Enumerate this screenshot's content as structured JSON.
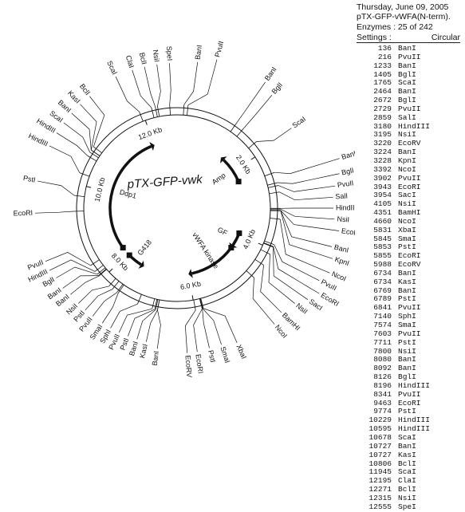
{
  "header": {
    "date": "Thursday, June 09, 2005",
    "plasmid": "pTX-GFP-vWFA(N-term).",
    "enzymes": "Enzymes : 25 of 242",
    "settings_label": "Settings :",
    "settings_value": "Circular"
  },
  "plasmid_map": {
    "handwritten_name": "pTX-GFP-vwk",
    "total_bp": 12700,
    "size_labels": [
      {
        "text": "2.0 Kb",
        "pos": 2000
      },
      {
        "text": "4.0 Kb",
        "pos": 4000
      },
      {
        "text": "6.0 Kb",
        "pos": 6000
      },
      {
        "text": "8.0 Kb",
        "pos": 8000
      },
      {
        "text": "10.0 Kb",
        "pos": 10000
      },
      {
        "text": "12.0 Kb",
        "pos": 12000
      }
    ],
    "features": [
      {
        "name": "Amp",
        "start": 1550,
        "end": 2350,
        "dir": -1
      },
      {
        "name": "GF",
        "start": 3950,
        "end": 4350,
        "dir": 1
      },
      {
        "name": "vWFA kinase",
        "start": 4450,
        "end": 5900,
        "dir": 1
      },
      {
        "name": "G418",
        "start": 7500,
        "end": 7950,
        "dir": -1
      },
      {
        "name": "Ddp1",
        "start": 8250,
        "end": 11900,
        "dir": 1
      }
    ],
    "sites": [
      {
        "name": "BanI",
        "pos": 136,
        "ang": 8,
        "r": 185
      },
      {
        "name": "PvuII",
        "pos": 216,
        "ang": 15,
        "r": 193
      },
      {
        "name": "BanI",
        "pos": 1233,
        "ang": 35,
        "r": 193
      },
      {
        "name": "BglI",
        "pos": 1405,
        "ang": 40,
        "r": 185
      },
      {
        "name": "ScaI",
        "pos": 1765,
        "ang": 55,
        "r": 175
      },
      {
        "name": "BanI",
        "pos": 2464,
        "ang": 73,
        "r": 213
      },
      {
        "name": "BglI",
        "pos": 2672,
        "ang": 78,
        "r": 208
      },
      {
        "name": "PvuII",
        "pos": 2729,
        "ang": 82,
        "r": 200
      },
      {
        "name": "SalI",
        "pos": 2859,
        "ang": 86,
        "r": 196
      },
      {
        "name": "HindIII",
        "pos": 3180,
        "ang": 90,
        "r": 196
      },
      {
        "name": "NsiI",
        "pos": 3195,
        "ang": 94,
        "r": 198
      },
      {
        "name": "EcoRV",
        "pos": 3220,
        "ang": 98,
        "r": 205
      },
      {
        "name": "BanI",
        "pos": 3224,
        "ang": 104,
        "r": 200
      },
      {
        "name": "KpnI",
        "pos": 3228,
        "ang": 108,
        "r": 205
      },
      {
        "name": "NcoI",
        "pos": 3392,
        "ang": 113,
        "r": 208
      },
      {
        "name": "PvuII",
        "pos": 3902,
        "ang": 117,
        "r": 200
      },
      {
        "name": "EcoRI",
        "pos": 3943,
        "ang": 121,
        "r": 208
      },
      {
        "name": "SacI",
        "pos": 3954,
        "ang": 125,
        "r": 200
      },
      {
        "name": "NsiI",
        "pos": 4105,
        "ang": 129,
        "r": 190
      },
      {
        "name": "BamHI",
        "pos": 4351,
        "ang": 135,
        "r": 185
      },
      {
        "name": "NcoI",
        "pos": 4660,
        "ang": 140,
        "r": 190
      },
      {
        "name": "XbaI",
        "pos": 5831,
        "ang": 156,
        "r": 185
      },
      {
        "name": "SmaI",
        "pos": 5845,
        "ang": 162,
        "r": 180
      },
      {
        "name": "PstI",
        "pos": 5853,
        "ang": 167,
        "r": 180
      },
      {
        "name": "EcoRI",
        "pos": 5855,
        "ang": 172,
        "r": 182
      },
      {
        "name": "EcoRV",
        "pos": 5988,
        "ang": 176,
        "r": 182
      },
      {
        "name": "BanI",
        "pos": 6734,
        "ang": 188,
        "r": 178
      },
      {
        "name": "KasI",
        "pos": 6734,
        "ang": 193,
        "r": 172
      },
      {
        "name": "BanI",
        "pos": 6769,
        "ang": 197,
        "r": 172
      },
      {
        "name": "PstI",
        "pos": 6789,
        "ang": 201,
        "r": 172
      },
      {
        "name": "PvuII",
        "pos": 6841,
        "ang": 205,
        "r": 172
      },
      {
        "name": "SphI",
        "pos": 7140,
        "ang": 209,
        "r": 172
      },
      {
        "name": "SmaI",
        "pos": 7574,
        "ang": 213,
        "r": 172
      },
      {
        "name": "PvuII",
        "pos": 7603,
        "ang": 218,
        "r": 172
      },
      {
        "name": "PstI",
        "pos": 7711,
        "ang": 222,
        "r": 172
      },
      {
        "name": "NsiI",
        "pos": 7800,
        "ang": 226,
        "r": 172
      },
      {
        "name": "BanI",
        "pos": 8080,
        "ang": 231,
        "r": 172
      },
      {
        "name": "BanI",
        "pos": 8092,
        "ang": 235,
        "r": 175
      },
      {
        "name": "BglI",
        "pos": 8126,
        "ang": 240,
        "r": 175
      },
      {
        "name": "HindIII",
        "pos": 8196,
        "ang": 244,
        "r": 178
      },
      {
        "name": "PvuII",
        "pos": 8341,
        "ang": 248,
        "r": 178
      },
      {
        "name": "EcoRI",
        "pos": 9463,
        "ang": 268,
        "r": 178
      },
      {
        "name": "PstI",
        "pos": 9774,
        "ang": 281,
        "r": 178
      },
      {
        "name": "HindIII",
        "pos": 10229,
        "ang": 296,
        "r": 178
      },
      {
        "name": "HindIII",
        "pos": 10595,
        "ang": 302,
        "r": 178
      },
      {
        "name": "ScaI",
        "pos": 10678,
        "ang": 307,
        "r": 178
      },
      {
        "name": "BanI",
        "pos": 10727,
        "ang": 312,
        "r": 178
      },
      {
        "name": "KasI",
        "pos": 10727,
        "ang": 317,
        "r": 178
      },
      {
        "name": "BclI",
        "pos": 10806,
        "ang": 322,
        "r": 178
      },
      {
        "name": "ScaI",
        "pos": 11945,
        "ang": 335,
        "r": 182
      },
      {
        "name": "ClaI",
        "pos": 12195,
        "ang": 342,
        "r": 182
      },
      {
        "name": "BclI",
        "pos": 12271,
        "ang": 347,
        "r": 182
      },
      {
        "name": "NsiI",
        "pos": 12315,
        "ang": 352,
        "r": 182
      },
      {
        "name": "SpeI",
        "pos": 12555,
        "ang": 357,
        "r": 182
      }
    ]
  },
  "enzyme_table": [
    {
      "pos": "136",
      "name": "BanI"
    },
    {
      "pos": "216",
      "name": "PvuII"
    },
    {
      "pos": "1233",
      "name": "BanI"
    },
    {
      "pos": "1405",
      "name": "BglI"
    },
    {
      "pos": "1765",
      "name": "ScaI"
    },
    {
      "pos": "2464",
      "name": "BanI"
    },
    {
      "pos": "2672",
      "name": "BglI"
    },
    {
      "pos": "2729",
      "name": "PvuII"
    },
    {
      "pos": "2859",
      "name": "SalI"
    },
    {
      "pos": "3180",
      "name": "HindIII"
    },
    {
      "pos": "3195",
      "name": "NsiI"
    },
    {
      "pos": "3220",
      "name": "EcoRV"
    },
    {
      "pos": "3224",
      "name": "BanI"
    },
    {
      "pos": "3228",
      "name": "KpnI"
    },
    {
      "pos": "3392",
      "name": "NcoI"
    },
    {
      "pos": "3902",
      "name": "PvuII"
    },
    {
      "pos": "3943",
      "name": "EcoRI"
    },
    {
      "pos": "3954",
      "name": "SacI"
    },
    {
      "pos": "4105",
      "name": "NsiI"
    },
    {
      "pos": "4351",
      "name": "BamHI"
    },
    {
      "pos": "4660",
      "name": "NcoI"
    },
    {
      "pos": "5831",
      "name": "XbaI"
    },
    {
      "pos": "5845",
      "name": "SmaI"
    },
    {
      "pos": "5853",
      "name": "PstI"
    },
    {
      "pos": "5855",
      "name": "EcoRI"
    },
    {
      "pos": "5988",
      "name": "EcoRV"
    },
    {
      "pos": "6734",
      "name": "BanI"
    },
    {
      "pos": "6734",
      "name": "KasI"
    },
    {
      "pos": "6769",
      "name": "BanI"
    },
    {
      "pos": "6789",
      "name": "PstI"
    },
    {
      "pos": "6841",
      "name": "PvuII"
    },
    {
      "pos": "7140",
      "name": "SphI"
    },
    {
      "pos": "7574",
      "name": "SmaI"
    },
    {
      "pos": "7603",
      "name": "PvuII"
    },
    {
      "pos": "7711",
      "name": "PstI"
    },
    {
      "pos": "7800",
      "name": "NsiI"
    },
    {
      "pos": "8080",
      "name": "BanI"
    },
    {
      "pos": "8092",
      "name": "BanI"
    },
    {
      "pos": "8126",
      "name": "BglI"
    },
    {
      "pos": "8196",
      "name": "HindIII"
    },
    {
      "pos": "8341",
      "name": "PvuII"
    },
    {
      "pos": "9463",
      "name": "EcoRI"
    },
    {
      "pos": "9774",
      "name": "PstI"
    },
    {
      "pos": "10229",
      "name": "HindIII"
    },
    {
      "pos": "10595",
      "name": "HindIII"
    },
    {
      "pos": "10678",
      "name": "ScaI"
    },
    {
      "pos": "10727",
      "name": "BanI"
    },
    {
      "pos": "10727",
      "name": "KasI"
    },
    {
      "pos": "10806",
      "name": "BclI"
    },
    {
      "pos": "11945",
      "name": "ScaI"
    },
    {
      "pos": "12195",
      "name": "ClaI"
    },
    {
      "pos": "12271",
      "name": "BclI"
    },
    {
      "pos": "12315",
      "name": "NsiI"
    },
    {
      "pos": "12555",
      "name": "SpeI"
    }
  ]
}
